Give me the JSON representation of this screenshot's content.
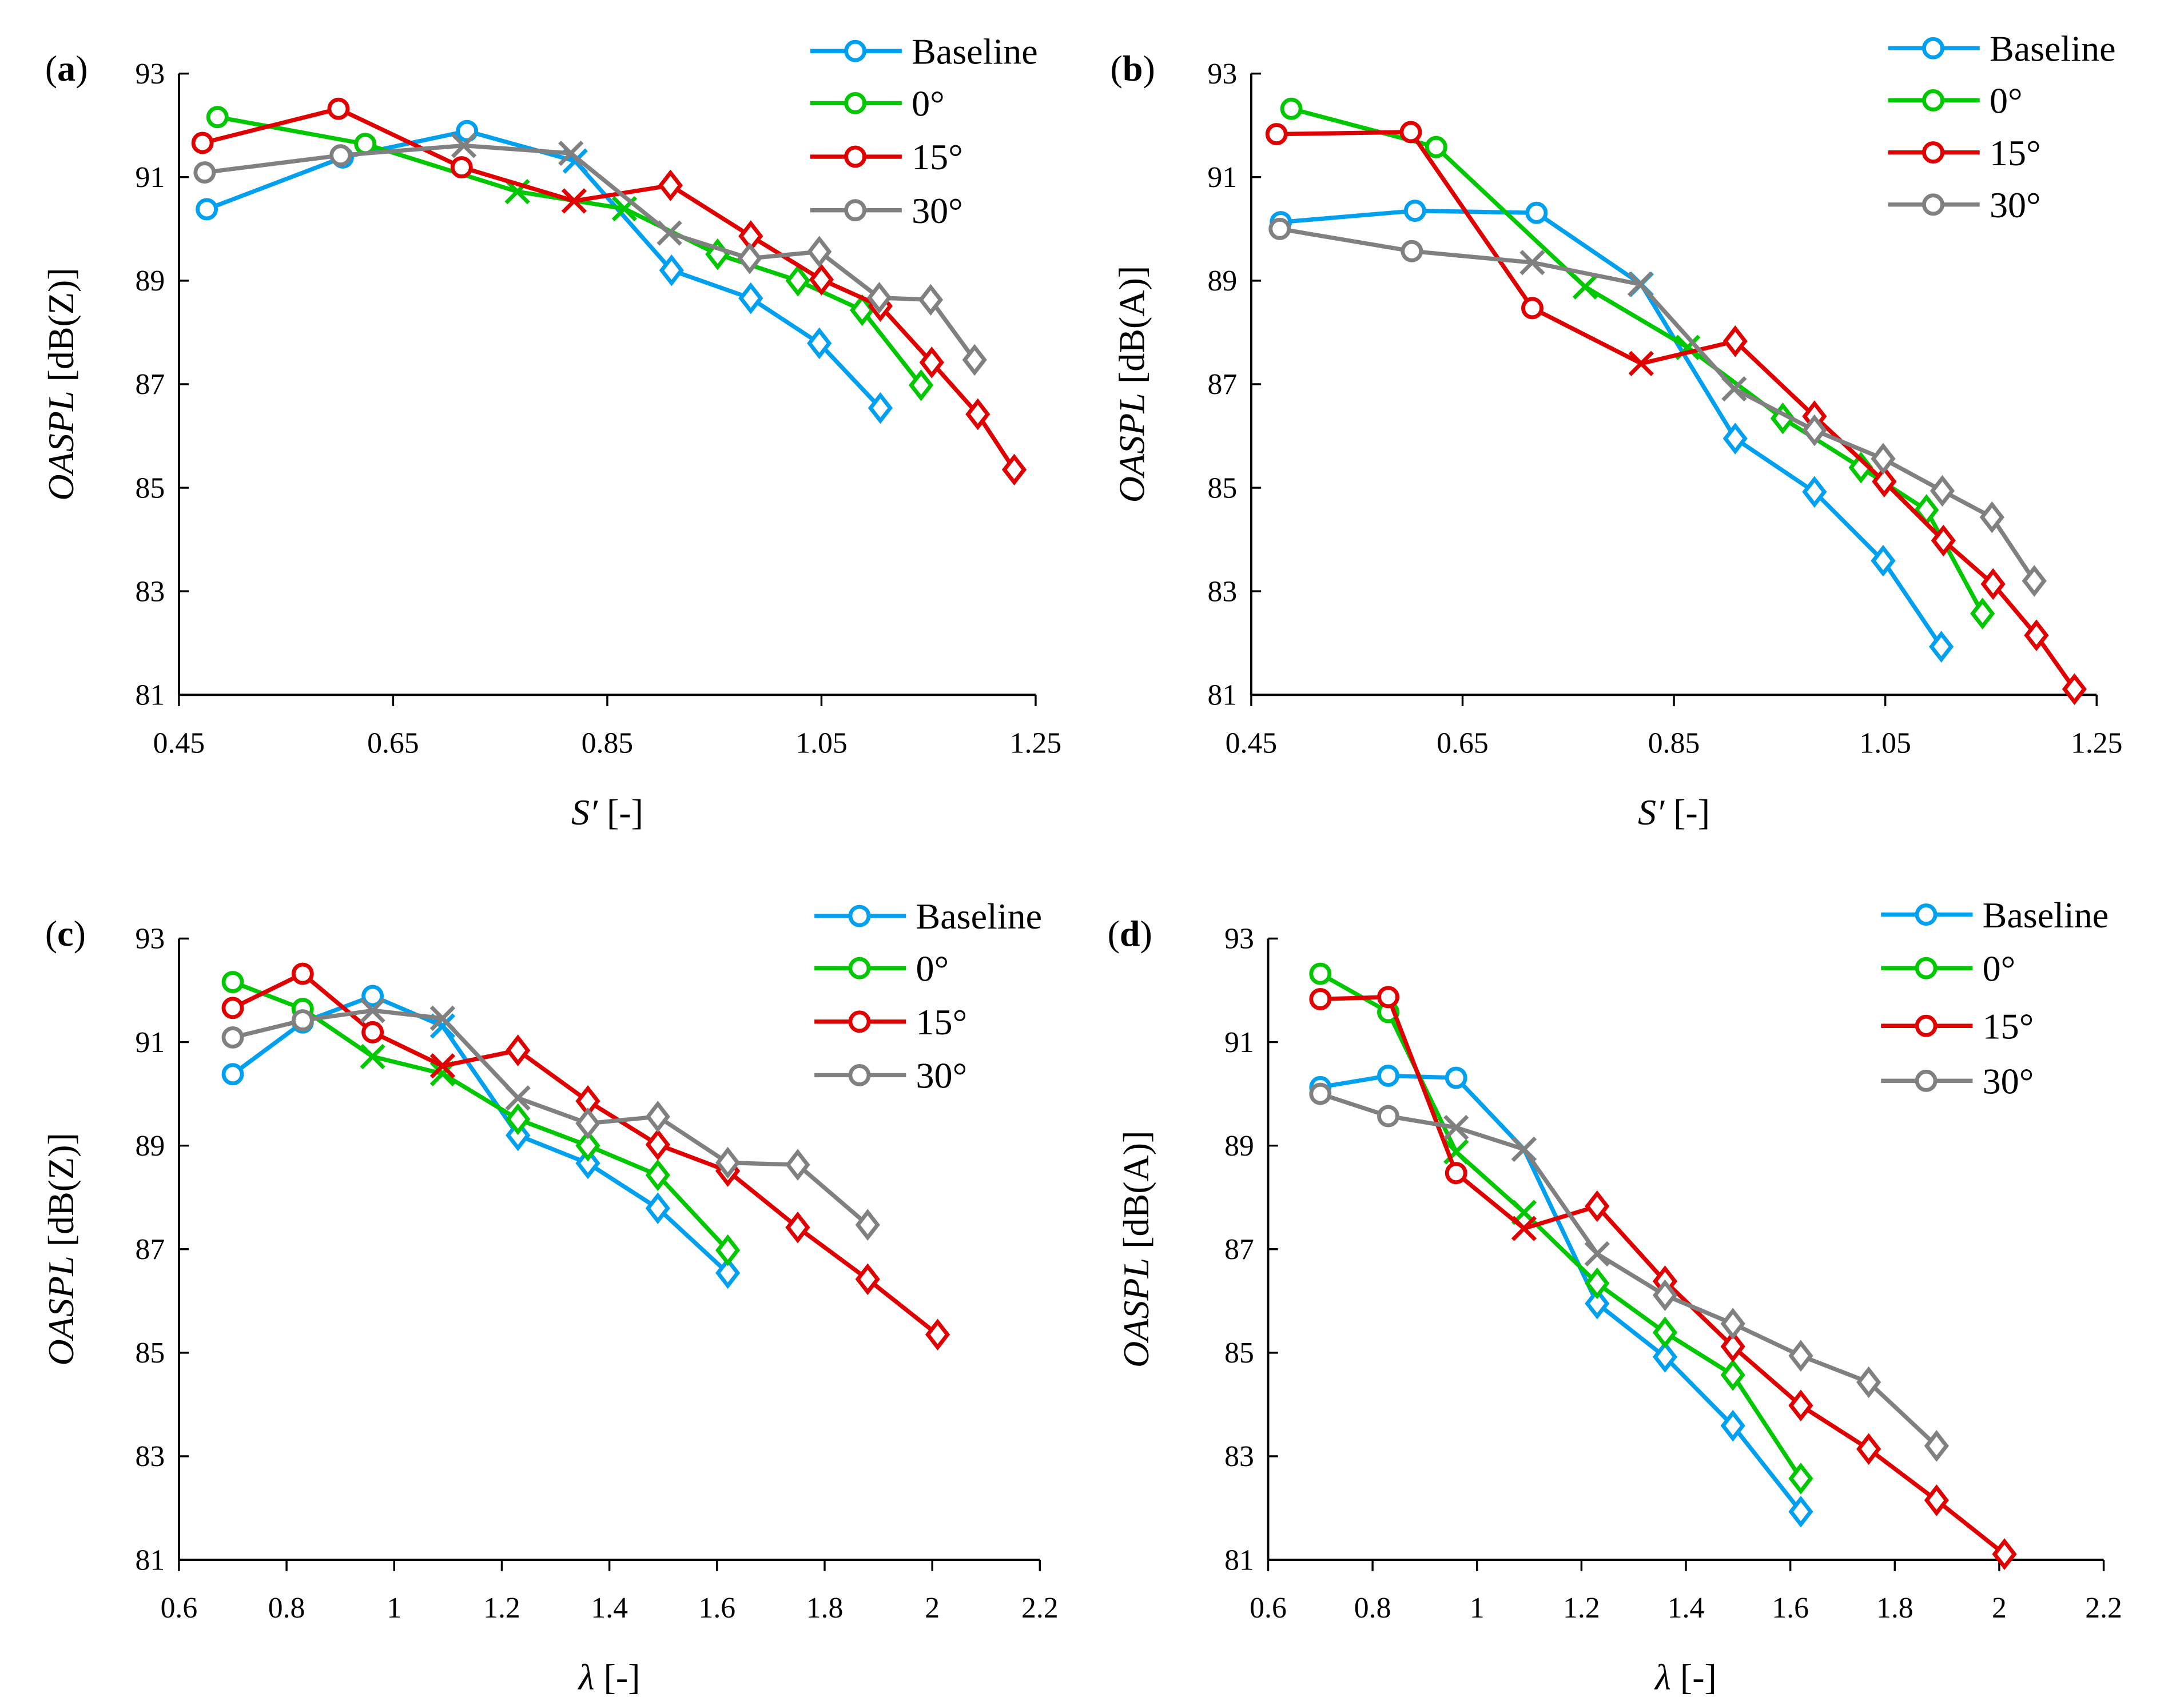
{
  "colors": {
    "Baseline": "#00a0f0",
    "0°": "#00c800",
    "15°": "#e00000",
    "30°": "#808080"
  },
  "legend": [
    "Baseline",
    "0°",
    "15°",
    "30°"
  ],
  "chart_data": [
    {
      "type": "line",
      "panel_label": "(a)",
      "xlabel_var": "S′",
      "xlabel_unit": " [-]",
      "ylabel_var": "OASPL",
      "ylabel_unit": " [dB(Z)]",
      "xlim": [
        0.45,
        1.25
      ],
      "ylim": [
        81,
        93
      ],
      "x_ticks": [
        "0.45",
        "0.65",
        "0.85",
        "1.05",
        "1.25"
      ],
      "y_ticks": [
        "81",
        "83",
        "85",
        "87",
        "89",
        "91",
        "93"
      ],
      "legend_position": "top-right",
      "series": [
        {
          "name": "Baseline",
          "x": [
            0.476,
            0.603,
            0.719,
            0.82,
            0.91,
            0.984,
            1.048,
            1.105
          ],
          "y": [
            90.38,
            91.38,
            91.89,
            91.31,
            89.2,
            88.66,
            87.79,
            86.54
          ],
          "markers": [
            "o",
            "o",
            "o",
            "x",
            "d",
            "d",
            "d",
            "d"
          ]
        },
        {
          "name": "0°",
          "x": [
            0.486,
            0.624,
            0.766,
            0.866,
            0.953,
            1.028,
            1.088,
            1.143
          ],
          "y": [
            92.16,
            91.64,
            90.72,
            90.39,
            89.51,
            89.0,
            88.43,
            86.98
          ],
          "markers": [
            "o",
            "o",
            "x",
            "x",
            "d",
            "d",
            "d",
            "d"
          ]
        },
        {
          "name": "15°",
          "x": [
            0.472,
            0.599,
            0.714,
            0.819,
            0.909,
            0.984,
            1.05,
            1.105,
            1.153,
            1.196,
            1.23
          ],
          "y": [
            91.66,
            92.32,
            91.19,
            90.54,
            90.84,
            89.86,
            89.02,
            88.51,
            87.42,
            86.42,
            85.35
          ],
          "markers": [
            "o",
            "o",
            "o",
            "x",
            "d",
            "d",
            "d",
            "d",
            "d",
            "d",
            "d"
          ]
        },
        {
          "name": "30°",
          "x": [
            0.474,
            0.601,
            0.716,
            0.816,
            0.908,
            0.983,
            1.048,
            1.104,
            1.152,
            1.193
          ],
          "y": [
            91.09,
            91.42,
            91.61,
            91.46,
            89.92,
            89.43,
            89.56,
            88.67,
            88.63,
            87.47
          ],
          "markers": [
            "o",
            "o",
            "x",
            "x",
            "x",
            "d",
            "d",
            "d",
            "d",
            "d"
          ]
        }
      ]
    },
    {
      "type": "line",
      "panel_label": "(b)",
      "xlabel_var": "S′",
      "xlabel_unit": " [-]",
      "ylabel_var": "OASPL",
      "ylabel_unit": " [dB(A)]",
      "xlim": [
        0.45,
        1.25
      ],
      "ylim": [
        81,
        93
      ],
      "x_ticks": [
        "0.45",
        "0.65",
        "0.85",
        "1.05",
        "1.25"
      ],
      "y_ticks": [
        "81",
        "83",
        "85",
        "87",
        "89",
        "91",
        "93"
      ],
      "legend_position": "top-right",
      "series": [
        {
          "name": "Baseline",
          "x": [
            0.478,
            0.605,
            0.72,
            0.819,
            0.908,
            0.983,
            1.048,
            1.103
          ],
          "y": [
            90.13,
            90.35,
            90.31,
            88.93,
            85.95,
            84.92,
            83.59,
            81.93
          ],
          "markers": [
            "o",
            "o",
            "o",
            "x",
            "d",
            "d",
            "d",
            "d"
          ]
        },
        {
          "name": "0°",
          "x": [
            0.488,
            0.625,
            0.766,
            0.863,
            0.953,
            1.027,
            1.089,
            1.142
          ],
          "y": [
            92.32,
            91.58,
            88.88,
            87.71,
            86.34,
            85.39,
            84.57,
            82.57
          ],
          "markers": [
            "o",
            "o",
            "x",
            "x",
            "d",
            "d",
            "d",
            "d"
          ]
        },
        {
          "name": "15°",
          "x": [
            0.474,
            0.601,
            0.716,
            0.819,
            0.908,
            0.983,
            1.049,
            1.105,
            1.152,
            1.193,
            1.229
          ],
          "y": [
            91.83,
            91.87,
            88.47,
            87.4,
            87.83,
            86.38,
            85.12,
            83.98,
            83.14,
            82.15,
            81.11
          ],
          "markers": [
            "o",
            "o",
            "o",
            "x",
            "d",
            "d",
            "d",
            "d",
            "d",
            "d",
            "d"
          ]
        },
        {
          "name": "30°",
          "x": [
            0.477,
            0.602,
            0.716,
            0.818,
            0.907,
            0.983,
            1.048,
            1.104,
            1.151,
            1.191
          ],
          "y": [
            90.0,
            89.57,
            89.35,
            88.93,
            86.91,
            86.11,
            85.56,
            84.94,
            84.43,
            83.2
          ],
          "markers": [
            "o",
            "o",
            "x",
            "x",
            "x",
            "d",
            "d",
            "d",
            "d",
            "d"
          ]
        }
      ]
    },
    {
      "type": "line",
      "panel_label": "(c)",
      "xlabel_var": "λ",
      "xlabel_unit": " [-]",
      "ylabel_var": "OASPL",
      "ylabel_unit": " [dB(Z)]",
      "xlim": [
        0.6,
        2.2
      ],
      "ylim": [
        81,
        93
      ],
      "x_ticks": [
        "0.6",
        "0.8",
        "1",
        "1.2",
        "1.4",
        "1.6",
        "1.8",
        "2",
        "2.2"
      ],
      "y_ticks": [
        "81",
        "83",
        "85",
        "87",
        "89",
        "91",
        "93"
      ],
      "legend_position": "top-right",
      "series": [
        {
          "name": "Baseline",
          "x": [
            0.7,
            0.83,
            0.96,
            1.09,
            1.23,
            1.36,
            1.49,
            1.62
          ],
          "y": [
            90.38,
            91.38,
            91.89,
            91.31,
            89.2,
            88.66,
            87.79,
            86.54
          ],
          "markers": [
            "o",
            "o",
            "o",
            "x",
            "d",
            "d",
            "d",
            "d"
          ]
        },
        {
          "name": "0°",
          "x": [
            0.7,
            0.83,
            0.96,
            1.09,
            1.23,
            1.36,
            1.49,
            1.62
          ],
          "y": [
            92.16,
            91.64,
            90.72,
            90.39,
            89.51,
            89.0,
            88.43,
            86.98
          ],
          "markers": [
            "o",
            "o",
            "x",
            "x",
            "d",
            "d",
            "d",
            "d"
          ]
        },
        {
          "name": "15°",
          "x": [
            0.7,
            0.83,
            0.96,
            1.09,
            1.23,
            1.36,
            1.49,
            1.62,
            1.75,
            1.88,
            2.01
          ],
          "y": [
            91.66,
            92.32,
            91.19,
            90.54,
            90.84,
            89.86,
            89.02,
            88.51,
            87.42,
            86.42,
            85.35
          ],
          "markers": [
            "o",
            "o",
            "o",
            "x",
            "d",
            "d",
            "d",
            "d",
            "d",
            "d",
            "d"
          ]
        },
        {
          "name": "30°",
          "x": [
            0.7,
            0.83,
            0.96,
            1.09,
            1.23,
            1.36,
            1.49,
            1.62,
            1.75,
            1.88
          ],
          "y": [
            91.09,
            91.42,
            91.61,
            91.46,
            89.92,
            89.43,
            89.56,
            88.67,
            88.63,
            87.47
          ],
          "markers": [
            "o",
            "o",
            "x",
            "x",
            "x",
            "d",
            "d",
            "d",
            "d",
            "d"
          ]
        }
      ]
    },
    {
      "type": "line",
      "panel_label": "(d)",
      "xlabel_var": "λ",
      "xlabel_unit": " [-]",
      "ylabel_var": "OASPL",
      "ylabel_unit": " [dB(A)]",
      "xlim": [
        0.6,
        2.2
      ],
      "ylim": [
        81,
        93
      ],
      "x_ticks": [
        "0.6",
        "0.8",
        "1",
        "1.2",
        "1.4",
        "1.6",
        "1.8",
        "2",
        "2.2"
      ],
      "y_ticks": [
        "81",
        "83",
        "85",
        "87",
        "89",
        "91",
        "93"
      ],
      "legend_position": "top-right",
      "series": [
        {
          "name": "Baseline",
          "x": [
            0.7,
            0.83,
            0.96,
            1.09,
            1.23,
            1.36,
            1.49,
            1.62
          ],
          "y": [
            90.13,
            90.35,
            90.31,
            88.93,
            85.95,
            84.92,
            83.59,
            81.93
          ],
          "markers": [
            "o",
            "o",
            "o",
            "x",
            "d",
            "d",
            "d",
            "d"
          ]
        },
        {
          "name": "0°",
          "x": [
            0.7,
            0.83,
            0.96,
            1.09,
            1.23,
            1.36,
            1.49,
            1.62
          ],
          "y": [
            92.32,
            91.58,
            88.88,
            87.71,
            86.34,
            85.39,
            84.57,
            82.57
          ],
          "markers": [
            "o",
            "o",
            "x",
            "x",
            "d",
            "d",
            "d",
            "d"
          ]
        },
        {
          "name": "15°",
          "x": [
            0.7,
            0.83,
            0.96,
            1.09,
            1.23,
            1.36,
            1.49,
            1.62,
            1.75,
            1.88,
            2.01
          ],
          "y": [
            91.83,
            91.87,
            88.47,
            87.4,
            87.83,
            86.38,
            85.12,
            83.98,
            83.14,
            82.15,
            81.11
          ],
          "markers": [
            "o",
            "o",
            "o",
            "x",
            "d",
            "d",
            "d",
            "d",
            "d",
            "d",
            "d"
          ]
        },
        {
          "name": "30°",
          "x": [
            0.7,
            0.83,
            0.96,
            1.09,
            1.23,
            1.36,
            1.49,
            1.62,
            1.75,
            1.88
          ],
          "y": [
            90.0,
            89.57,
            89.35,
            88.93,
            86.91,
            86.11,
            85.56,
            84.94,
            84.43,
            83.2
          ],
          "markers": [
            "o",
            "o",
            "x",
            "x",
            "x",
            "d",
            "d",
            "d",
            "d",
            "d"
          ]
        }
      ]
    }
  ]
}
